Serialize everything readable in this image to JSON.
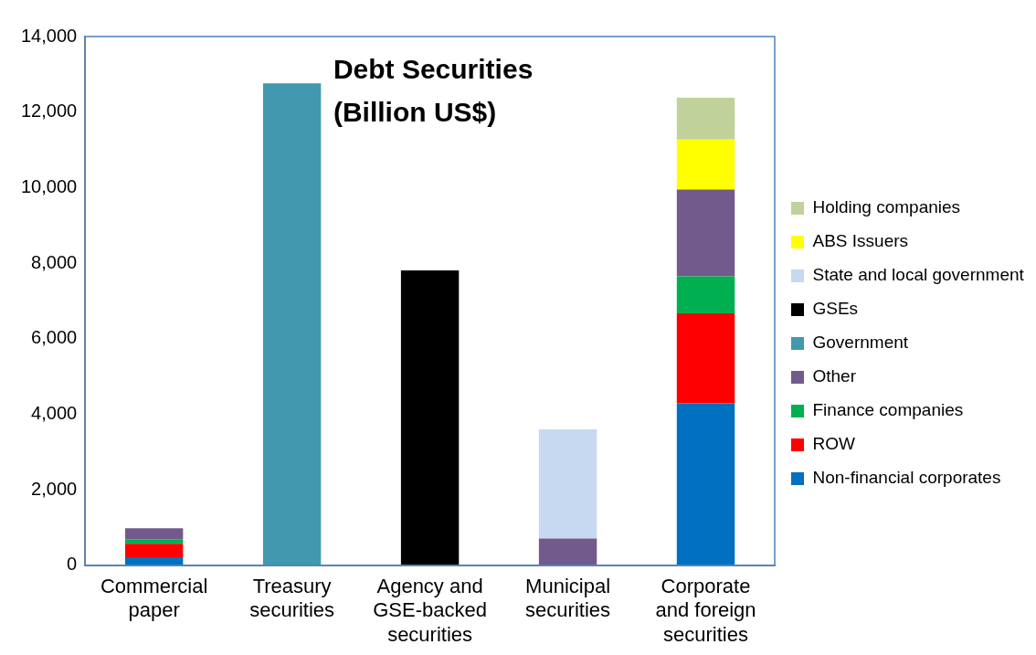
{
  "chart_data": {
    "type": "bar",
    "stacked": true,
    "title": "Debt Securities",
    "subtitle": "(Billion US$)",
    "categories": [
      "Commercial paper",
      "Treasury securities",
      "Agency and GSE-backed securities",
      "Municipal securities",
      "Corporate and foreign securities"
    ],
    "series": [
      {
        "name": "Non-financial corporates",
        "color": "#0070c0",
        "values": [
          210,
          null,
          null,
          null,
          4290
        ]
      },
      {
        "name": "ROW",
        "color": "#ff0000",
        "values": [
          360,
          null,
          null,
          null,
          2380
        ]
      },
      {
        "name": "Finance companies",
        "color": "#00b050",
        "values": [
          120,
          null,
          null,
          null,
          980
        ]
      },
      {
        "name": "Other",
        "color": "#725a8c",
        "values": [
          290,
          null,
          null,
          710,
          2300
        ]
      },
      {
        "name": "Government",
        "color": "#4198af",
        "values": [
          null,
          12760,
          null,
          null,
          null
        ]
      },
      {
        "name": "GSEs",
        "color": "#000000",
        "values": [
          null,
          null,
          7810,
          null,
          null
        ]
      },
      {
        "name": "State and local government",
        "color": "#c6d9f1",
        "values": [
          null,
          null,
          null,
          2890,
          null
        ]
      },
      {
        "name": "ABS Issuers",
        "color": "#ffff00",
        "values": [
          null,
          null,
          null,
          null,
          1320
        ]
      },
      {
        "name": "Holding companies",
        "color": "#c0d29a",
        "values": [
          null,
          null,
          null,
          null,
          1110
        ]
      }
    ],
    "ylim": [
      0,
      14000
    ],
    "yticks": [
      0,
      {
        "value": 2000,
        "label": "2,000"
      },
      {
        "value": 4000,
        "label": "4,000"
      },
      {
        "value": 6000,
        "label": "6,000"
      },
      {
        "value": 8000,
        "label": "8,000"
      },
      {
        "value": 10000,
        "label": "10,000"
      },
      {
        "value": 12000,
        "label": "12,000"
      },
      {
        "value": 14000,
        "label": "14,000"
      }
    ],
    "grid": false,
    "legend": "right"
  }
}
